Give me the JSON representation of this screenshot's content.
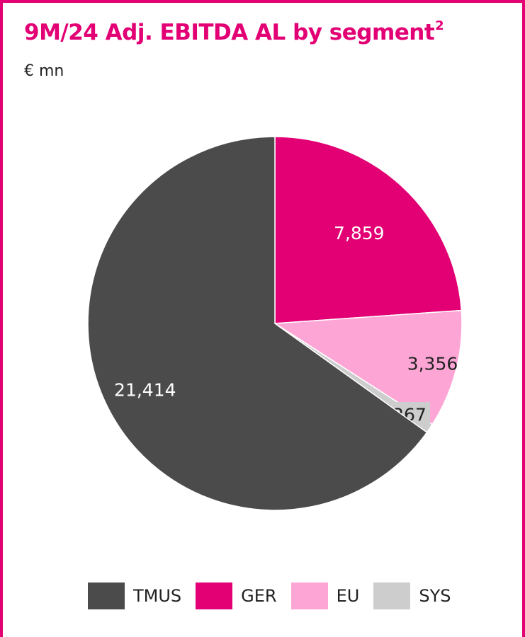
{
  "header": {
    "title": "9M/24 Adj. EBITDA AL by segment",
    "title_footnote": "2",
    "subtitle": "€ mn"
  },
  "chart_data": {
    "type": "pie",
    "title": "9M/24 Adj. EBITDA AL by segment",
    "subtitle": "€ mn",
    "legend_position": "bottom",
    "slices": [
      {
        "name": "GER",
        "value": 7859,
        "label": "7,859",
        "color": "#e20074",
        "label_color": "#ffffff"
      },
      {
        "name": "EU",
        "value": 3356,
        "label": "3,356",
        "color": "#fda6d6",
        "label_color": "#222222"
      },
      {
        "name": "SYS",
        "value": 267,
        "label": "267",
        "color": "#cdcdcd",
        "label_color": "#222222"
      },
      {
        "name": "TMUS",
        "value": 21414,
        "label": "21,414",
        "color": "#4b4b4b",
        "label_color": "#ffffff"
      }
    ],
    "legend": [
      "TMUS",
      "GER",
      "EU",
      "SYS"
    ]
  }
}
